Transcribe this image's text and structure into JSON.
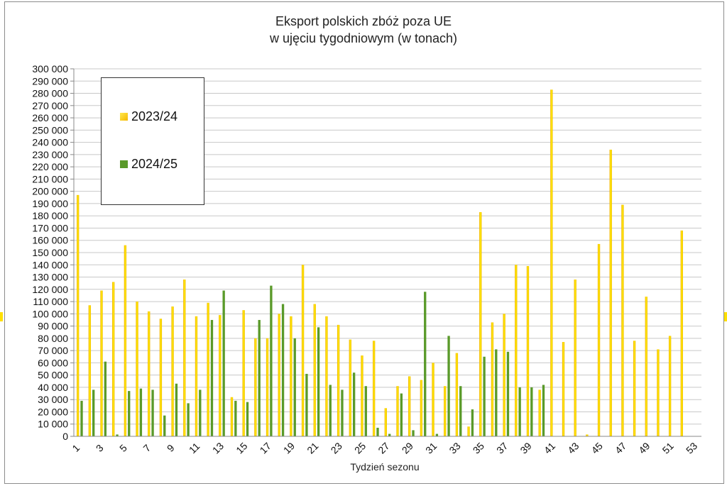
{
  "chart_data": {
    "type": "bar",
    "title": [
      "Eksport polskich zbóż poza UE",
      "w ujęciu tygodniowym (w tonach)"
    ],
    "xlabel": "Tydzień sezonu",
    "ylabel": "",
    "ylim": [
      0,
      300000
    ],
    "ytick_step": 10000,
    "ytick_labels": [
      "0",
      "10 000",
      "20 000",
      "30 000",
      "40 000",
      "50 000",
      "60 000",
      "70 000",
      "80 000",
      "90 000",
      "100 000",
      "110 000",
      "120 000",
      "130 000",
      "140 000",
      "150 000",
      "160 000",
      "170 000",
      "180 000",
      "190 000",
      "200 000",
      "210 000",
      "220 000",
      "230 000",
      "240 000",
      "250 000",
      "260 000",
      "270 000",
      "280 000",
      "290 000",
      "300 000"
    ],
    "xtick_labels": [
      "1",
      "3",
      "5",
      "7",
      "9",
      "11",
      "13",
      "15",
      "17",
      "19",
      "21",
      "23",
      "25",
      "27",
      "29",
      "31",
      "33",
      "35",
      "37",
      "39",
      "41",
      "43",
      "45",
      "47",
      "49",
      "51",
      "53"
    ],
    "categories": [
      1,
      2,
      3,
      4,
      5,
      6,
      7,
      8,
      9,
      10,
      11,
      12,
      13,
      14,
      15,
      16,
      17,
      18,
      19,
      20,
      21,
      22,
      23,
      24,
      25,
      26,
      27,
      28,
      29,
      30,
      31,
      32,
      33,
      34,
      35,
      36,
      37,
      38,
      39,
      40,
      41,
      42,
      43,
      44,
      45,
      46,
      47,
      48,
      49,
      50,
      51,
      52,
      53
    ],
    "grid": true,
    "legend_position": "top-left",
    "series": [
      {
        "name": "2023/24",
        "color": "#ffd400",
        "values": [
          197000,
          107000,
          119000,
          126000,
          156000,
          110000,
          102000,
          96000,
          106000,
          128000,
          98000,
          109000,
          99000,
          32000,
          103000,
          80000,
          80000,
          100000,
          98000,
          140000,
          108000,
          98000,
          91000,
          79000,
          66000,
          78000,
          23000,
          41000,
          49000,
          46000,
          60000,
          41000,
          68000,
          8000,
          183000,
          93000,
          100000,
          140000,
          139000,
          38000,
          283000,
          77000,
          128000,
          1500,
          157000,
          234000,
          189000,
          78000,
          114000,
          71000,
          82000,
          168000,
          0
        ]
      },
      {
        "name": "2024/25",
        "color": "#5a9a2a",
        "values": [
          29000,
          38000,
          61000,
          1500,
          37000,
          39000,
          38000,
          17000,
          43000,
          27000,
          38000,
          95000,
          119000,
          29000,
          28000,
          95000,
          123000,
          108000,
          80000,
          51000,
          89000,
          42000,
          38000,
          52000,
          41000,
          7000,
          2000,
          35000,
          5000,
          118000,
          2000,
          82000,
          41000,
          22000,
          65000,
          71000,
          69000,
          40000,
          40000,
          42000,
          0,
          0,
          0,
          0,
          0,
          0,
          0,
          0,
          0,
          0,
          0,
          0,
          0
        ]
      }
    ]
  }
}
